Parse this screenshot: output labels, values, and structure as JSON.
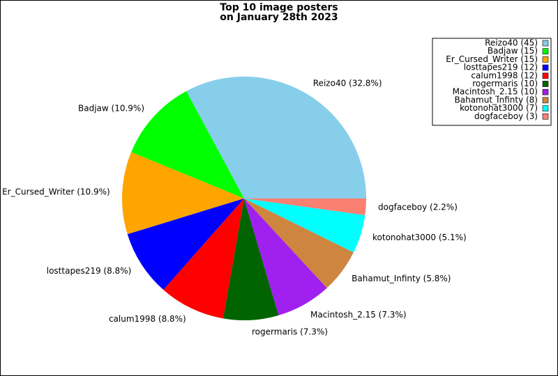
{
  "chart_data": {
    "type": "pie",
    "title": [
      "Top 10 image posters",
      "on January 28th 2023"
    ],
    "categories": [
      "Reizo40 (45)",
      "Badjaw (15)",
      "Er_Cursed_Writer (15)",
      "losttapes219 (12)",
      "calum1998 (12)",
      "rogermaris (10)",
      "Macintosh_2.15 (10)",
      "Bahamut_Infinty (8)",
      "kotonohat3000 (7)",
      "dogfaceboy (3)"
    ],
    "values": [
      45,
      15,
      15,
      12,
      12,
      10,
      10,
      8,
      7,
      3
    ],
    "wedge_labels": [
      "Reizo40 (32.8%)",
      "Badjaw (10.9%)",
      "Er_Cursed_Writer (10.9%)",
      "losttapes219 (8.8%)",
      "calum1998 (8.8%)",
      "rogermaris (7.3%)",
      "Macintosh_2.15 (7.3%)",
      "Bahamut_Infinty (5.8%)",
      "kotonohat3000 (5.1%)",
      "dogfaceboy (2.2%)"
    ],
    "colors": [
      "#87ceeb",
      "#00ff00",
      "#ffa500",
      "#0000ff",
      "#ff0000",
      "#006400",
      "#a020f0",
      "#cd853f",
      "#00ffff",
      "#fa8072"
    ],
    "legend": "upper right"
  }
}
